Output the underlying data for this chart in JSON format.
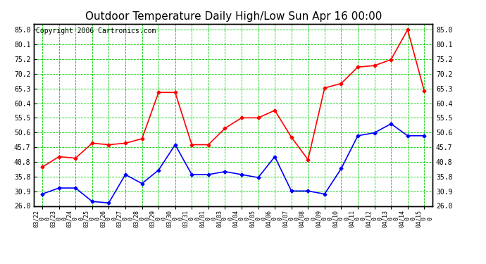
{
  "title": "Outdoor Temperature Daily High/Low Sun Apr 16 00:00",
  "copyright": "Copyright 2006 Cartronics.com",
  "x_labels": [
    "03/22",
    "03/23",
    "03/24",
    "03/25",
    "03/26",
    "03/27",
    "03/28",
    "03/29",
    "03/30",
    "03/31",
    "04/01",
    "04/03",
    "04/04",
    "04/05",
    "04/06",
    "04/07",
    "04/08",
    "04/09",
    "04/10",
    "04/11",
    "04/12",
    "04/13",
    "04/14",
    "04/15"
  ],
  "high_values": [
    39.0,
    42.5,
    42.0,
    47.0,
    46.5,
    47.0,
    48.5,
    64.0,
    64.0,
    46.5,
    46.5,
    52.0,
    55.5,
    55.5,
    58.0,
    49.0,
    41.5,
    65.5,
    67.0,
    72.5,
    73.0,
    75.0,
    85.0,
    64.5
  ],
  "low_values": [
    30.0,
    32.0,
    32.0,
    27.5,
    27.0,
    36.5,
    33.5,
    38.0,
    46.5,
    36.5,
    36.5,
    37.5,
    36.5,
    35.5,
    42.5,
    31.0,
    31.0,
    30.0,
    38.5,
    49.5,
    50.5,
    53.5,
    49.5,
    49.5
  ],
  "high_color": "#ff0000",
  "low_color": "#0000ff",
  "bg_color": "#ffffff",
  "grid_color": "#00cc00",
  "border_color": "#000000",
  "ylim": [
    26.0,
    87.0
  ],
  "yticks": [
    26.0,
    30.9,
    35.8,
    40.8,
    45.7,
    50.6,
    55.5,
    60.4,
    65.3,
    70.2,
    75.2,
    80.1,
    85.0
  ],
  "title_fontsize": 11,
  "copyright_fontsize": 7,
  "marker": "D",
  "marker_size": 2.5,
  "linewidth": 1.2
}
